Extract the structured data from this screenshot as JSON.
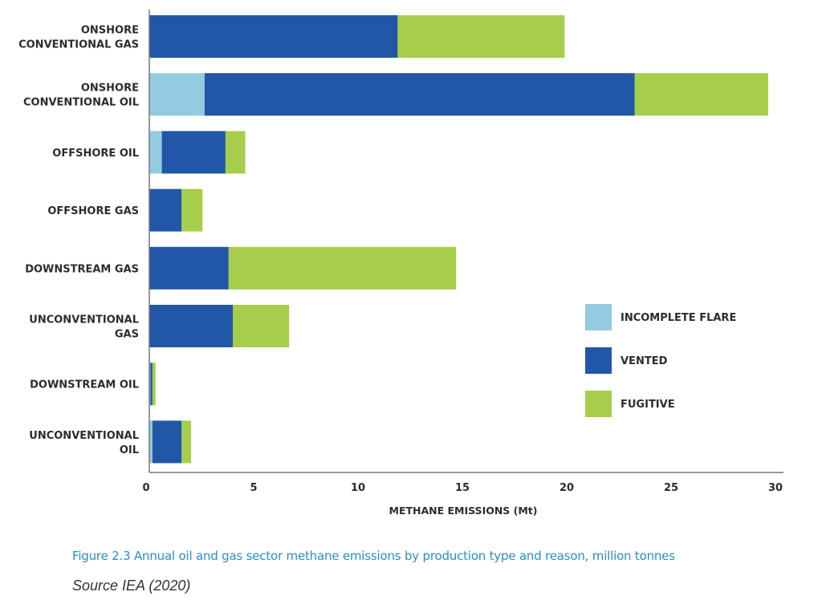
{
  "chart_data": {
    "type": "bar",
    "orientation": "horizontal",
    "stacked": true,
    "categories": [
      [
        "ONSHORE",
        "CONVENTIONAL GAS"
      ],
      [
        "ONSHORE",
        "CONVENTIONAL OIL"
      ],
      [
        "OFFSHORE OIL"
      ],
      [
        "OFFSHORE GAS"
      ],
      [
        "DOWNSTREAM GAS"
      ],
      [
        "UNCONVENTIONAL",
        "GAS"
      ],
      [
        "DOWNSTREAM OIL"
      ],
      [
        "UNCONVENTIONAL",
        "OIL"
      ]
    ],
    "series": [
      {
        "name": "INCOMPLETE FLARE",
        "color": "#94cbe0",
        "values": [
          0,
          2.65,
          0.6,
          0,
          0,
          0,
          0.05,
          0.15
        ]
      },
      {
        "name": "VENTED",
        "color": "#2257a7",
        "values": [
          11.9,
          20.6,
          3.05,
          1.55,
          3.8,
          4.0,
          0.1,
          1.4
        ]
      },
      {
        "name": "FUGITIVE",
        "color": "#a6ce4a",
        "values": [
          8.0,
          6.4,
          0.95,
          1.0,
          10.9,
          2.7,
          0.15,
          0.45
        ]
      }
    ],
    "xlabel": "METHANE EMISSIONS (Mt)",
    "ylabel": "",
    "xlim": [
      0,
      30
    ],
    "xticks": [
      "0",
      "5",
      "10",
      "15",
      "20",
      "25",
      "30"
    ],
    "xtick_values": [
      0,
      5,
      10,
      15,
      20,
      25,
      30
    ],
    "grid": false,
    "legend_position": "right"
  },
  "caption": "Figure 2.3 Annual oil and gas sector methane emissions by production type and reason, million tonnes",
  "source": "Source IEA (2020)",
  "colors": {
    "axis": "#777777",
    "text": "#2b2b33",
    "caption": "#2a8fc0"
  }
}
